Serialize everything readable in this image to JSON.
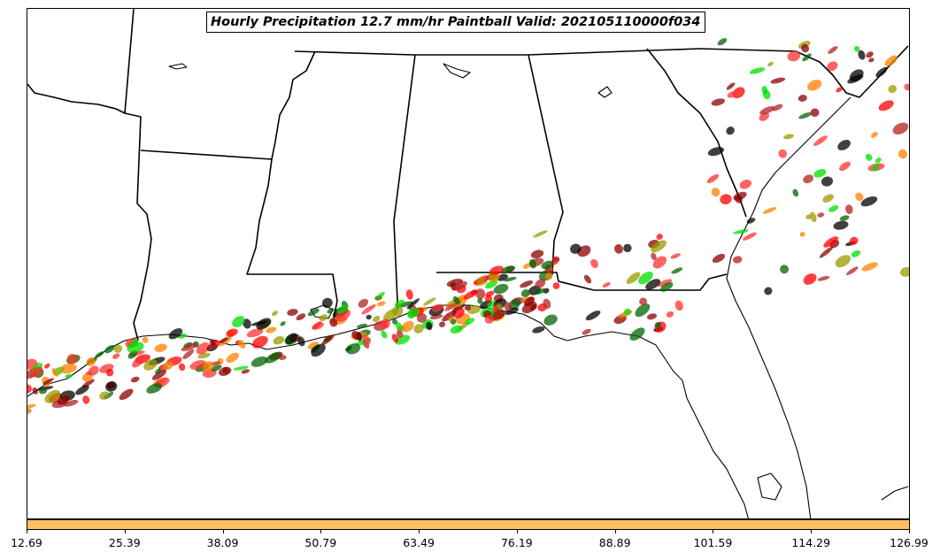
{
  "title": "Hourly Precipitation 12.7 mm/hr Paintball Valid: 202105110000f034",
  "colorbar": {
    "color": "#ffbf60",
    "ticks": [
      "12.69",
      "25.39",
      "38.09",
      "50.79",
      "63.49",
      "76.19",
      "88.89",
      "101.59",
      "114.29",
      "126.99"
    ]
  },
  "paintball_colors": [
    "#ff0000",
    "#00dd00",
    "#ff8000",
    "#8b0000",
    "#9a9a00",
    "#006400",
    "#000000",
    "#ff3030",
    "#b22222"
  ],
  "map": {
    "region": "Southeastern United States",
    "features": [
      "state boundaries",
      "coastlines",
      "precipitation paintball blobs"
    ]
  }
}
